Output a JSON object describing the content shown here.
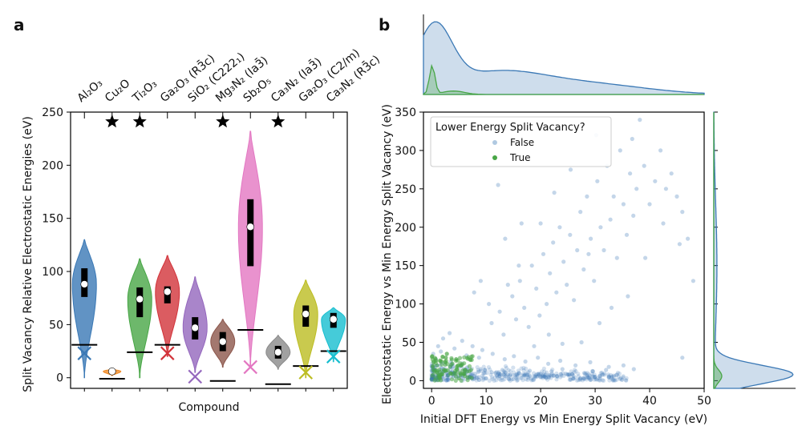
{
  "panel_labels": {
    "a": "a",
    "b": "b"
  },
  "colors": {
    "blue": "#3a78b5",
    "orange": "#f08a24",
    "green": "#48a646",
    "red": "#d2333a",
    "purple": "#9467bd",
    "brown": "#8c564b",
    "pink": "#e377c2",
    "gray": "#8a8a8a",
    "olive": "#bcbd22",
    "cyan": "#17becf"
  },
  "chart_data": [
    {
      "type": "violin",
      "panel": "a",
      "title": "",
      "xlabel": "Compound",
      "ylabel": "Split Vacancy Relative Electrostatic Energies (eV)",
      "ylim": [
        -10,
        250
      ],
      "yticks": [
        "0",
        "50",
        "100",
        "150",
        "200",
        "250"
      ],
      "categories": [
        {
          "label": "Al₂O₃",
          "color": "blue",
          "min": 0,
          "max": 130,
          "q1": 76,
          "median": 88,
          "q3": 103,
          "ref": 31,
          "x_marker": 23,
          "star": false
        },
        {
          "label": "Cu₂O",
          "color": "orange",
          "min": 2,
          "max": 8,
          "q1": 4,
          "median": 6,
          "q3": 7,
          "ref": -1,
          "x_marker": null,
          "star": true
        },
        {
          "label": "Ti₂O₃",
          "color": "green",
          "min": 0,
          "max": 112,
          "q1": 57,
          "median": 74,
          "q3": 85,
          "ref": 24,
          "x_marker": null,
          "star": true
        },
        {
          "label": "Ga₂O₃ (R3̄c)",
          "color": "red",
          "min": 20,
          "max": 115,
          "q1": 70,
          "median": 81,
          "q3": 86,
          "ref": 31,
          "x_marker": 23,
          "star": false
        },
        {
          "label": "SiO₂ (C222₁)",
          "color": "purple",
          "min": 5,
          "max": 95,
          "q1": 36,
          "median": 47,
          "q3": 57,
          "ref": null,
          "x_marker": 1,
          "star": false
        },
        {
          "label": "Mg₃N₂ (Ia3̄)",
          "color": "brown",
          "min": 10,
          "max": 55,
          "q1": 25,
          "median": 34,
          "q3": 43,
          "ref": -3,
          "x_marker": null,
          "star": true
        },
        {
          "label": "Sb₂O₅",
          "color": "pink",
          "min": 10,
          "max": 232,
          "q1": 105,
          "median": 142,
          "q3": 168,
          "ref": 45,
          "x_marker": 10,
          "star": false
        },
        {
          "label": "Ca₃N₂ (Ia3̄)",
          "color": "gray",
          "min": 8,
          "max": 40,
          "q1": 18,
          "median": 24,
          "q3": 30,
          "ref": -6,
          "x_marker": null,
          "star": true
        },
        {
          "label": "Ga₂O₃ (C2/m)",
          "color": "olive",
          "min": 0,
          "max": 92,
          "q1": 48,
          "median": 60,
          "q3": 68,
          "ref": 11,
          "x_marker": 5,
          "star": false
        },
        {
          "label": "Ca₃N₂ (R3̄c)",
          "color": "cyan",
          "min": 15,
          "max": 66,
          "q1": 47,
          "median": 55,
          "q3": 61,
          "ref": 25,
          "x_marker": 20,
          "star": false
        }
      ]
    },
    {
      "type": "scatter",
      "panel": "b",
      "title": "",
      "xlabel": "Initial DFT Energy vs Min Energy Split Vacancy (eV)",
      "ylabel": "Electrostatic Energy vs Min Energy Split Vacancy (eV)",
      "xlim": [
        -1.5,
        50
      ],
      "ylim": [
        -10,
        350
      ],
      "xticks": [
        "0",
        "10",
        "20",
        "30",
        "40",
        "50"
      ],
      "yticks": [
        "0",
        "50",
        "100",
        "150",
        "200",
        "250",
        "300",
        "350"
      ],
      "legend": {
        "title": "Lower Energy Split Vacancy?",
        "position": "top-left",
        "items": [
          "False",
          "True"
        ]
      },
      "series": [
        {
          "name": "False",
          "color": "blue",
          "points": [
            [
              0.2,
              5
            ],
            [
              0.5,
              12
            ],
            [
              1,
              3
            ],
            [
              1.5,
              20
            ],
            [
              2,
              8
            ],
            [
              2.5,
              15
            ],
            [
              3,
              2
            ],
            [
              3.5,
              25
            ],
            [
              4,
              10
            ],
            [
              4.5,
              5
            ],
            [
              5,
              18
            ],
            [
              5.5,
              7
            ],
            [
              6,
              12
            ],
            [
              7,
              4
            ],
            [
              8,
              9
            ],
            [
              9,
              15
            ],
            [
              10,
              3
            ],
            [
              11,
              11
            ],
            [
              12,
              6
            ],
            [
              13,
              14
            ],
            [
              14,
              8
            ],
            [
              15,
              2
            ],
            [
              16,
              10
            ],
            [
              17,
              7
            ],
            [
              18,
              13
            ],
            [
              19,
              5
            ],
            [
              20,
              9
            ],
            [
              21,
              4
            ],
            [
              22,
              12
            ],
            [
              23,
              6
            ],
            [
              24,
              15
            ],
            [
              25,
              8
            ],
            [
              26,
              3
            ],
            [
              28,
              10
            ],
            [
              30,
              5
            ],
            [
              32,
              14
            ],
            [
              34,
              8
            ],
            [
              0.3,
              35
            ],
            [
              1.2,
              45
            ],
            [
              2.1,
              55
            ],
            [
              3.3,
              62
            ],
            [
              0.8,
              28
            ],
            [
              1.7,
              38
            ],
            [
              4.2,
              42
            ],
            [
              5.6,
              52
            ],
            [
              6.4,
              33
            ],
            [
              7.5,
              45
            ],
            [
              8.7,
              30
            ],
            [
              9.3,
              40
            ],
            [
              11.2,
              35
            ],
            [
              13.4,
              28
            ],
            [
              15.1,
              32
            ],
            [
              17.2,
              25
            ],
            [
              19.5,
              30
            ],
            [
              21.4,
              22
            ],
            [
              23.6,
              26
            ],
            [
              26.4,
              20
            ],
            [
              29.1,
              24
            ],
            [
              32.5,
              18
            ],
            [
              35.2,
              20
            ],
            [
              37.1,
              15
            ],
            [
              46,
              30
            ],
            [
              11,
              75
            ],
            [
              12.5,
              90
            ],
            [
              13.2,
              60
            ],
            [
              14.8,
              110
            ],
            [
              15.5,
              80
            ],
            [
              16.2,
              130
            ],
            [
              17,
              95
            ],
            [
              17.8,
              70
            ],
            [
              18.4,
              150
            ],
            [
              19.2,
              120
            ],
            [
              19.8,
              85
            ],
            [
              20.5,
              165
            ],
            [
              21.1,
              100
            ],
            [
              21.7,
              140
            ],
            [
              22.3,
              180
            ],
            [
              22.9,
              115
            ],
            [
              23.5,
              200
            ],
            [
              24.2,
              155
            ],
            [
              24.8,
              125
            ],
            [
              25.4,
              190
            ],
            [
              26.1,
              105
            ],
            [
              26.7,
              170
            ],
            [
              27.3,
              220
            ],
            [
              27.9,
              145
            ],
            [
              28.5,
              240
            ],
            [
              29.2,
              185
            ],
            [
              29.8,
              130
            ],
            [
              30.4,
              260
            ],
            [
              31,
              200
            ],
            [
              31.6,
              170
            ],
            [
              32.2,
              280
            ],
            [
              32.8,
              210
            ],
            [
              33.4,
              240
            ],
            [
              34,
              160
            ],
            [
              34.6,
              300
            ],
            [
              35.2,
              230
            ],
            [
              35.8,
              190
            ],
            [
              36.4,
              270
            ],
            [
              37,
              215
            ],
            [
              37.6,
              250
            ],
            [
              38.2,
              340
            ],
            [
              39,
              280
            ],
            [
              40,
              230
            ],
            [
              41,
              260
            ],
            [
              42,
              300
            ],
            [
              43,
              250
            ],
            [
              44,
              270
            ],
            [
              45,
              240
            ],
            [
              46,
              220
            ],
            [
              47,
              185
            ],
            [
              48,
              130
            ],
            [
              12.2,
              255
            ],
            [
              13.5,
              185
            ],
            [
              16.5,
              205
            ],
            [
              18.8,
              45
            ],
            [
              21.5,
              60
            ],
            [
              24,
              48
            ],
            [
              27.5,
              50
            ],
            [
              30.8,
              75
            ],
            [
              33,
              95
            ],
            [
              36,
              110
            ],
            [
              39.2,
              160
            ],
            [
              42.5,
              205
            ],
            [
              45.5,
              178
            ],
            [
              30.2,
              320
            ],
            [
              36.8,
              315
            ],
            [
              22.5,
              245
            ],
            [
              25.5,
              275
            ],
            [
              28.8,
              165
            ],
            [
              20,
              205
            ],
            [
              16,
              150
            ],
            [
              14,
              125
            ],
            [
              10.5,
              100
            ],
            [
              9,
              130
            ],
            [
              7.8,
              115
            ]
          ]
        },
        {
          "name": "True",
          "color": "green",
          "points": [
            [
              0,
              2
            ],
            [
              0.3,
              8
            ],
            [
              0.6,
              14
            ],
            [
              1,
              20
            ],
            [
              1.3,
              5
            ],
            [
              1.8,
              25
            ],
            [
              2.2,
              12
            ],
            [
              2.6,
              30
            ],
            [
              3,
              7
            ],
            [
              3.4,
              18
            ],
            [
              3.8,
              22
            ],
            [
              4.2,
              10
            ],
            [
              4.6,
              15
            ],
            [
              5,
              3
            ],
            [
              5.4,
              20
            ],
            [
              6,
              9
            ],
            [
              6.5,
              12
            ],
            [
              7,
              5
            ],
            [
              0.1,
              32
            ],
            [
              0.8,
              26
            ],
            [
              2.8,
              35
            ],
            [
              4.5,
              28
            ]
          ]
        }
      ]
    }
  ]
}
